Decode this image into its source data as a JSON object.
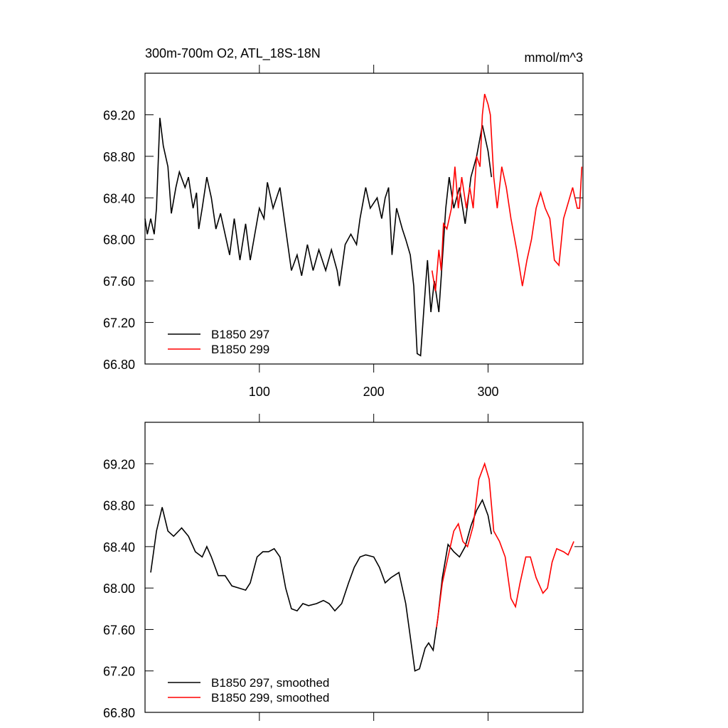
{
  "chart_data": [
    {
      "type": "line",
      "title": "300m-700m O2, ATL_18S-18N",
      "subtitle": "mmol/m^3",
      "xlim": [
        0,
        383
      ],
      "xticks": [
        100,
        200,
        300
      ],
      "show_xtick_labels": true,
      "ylim": [
        66.8,
        69.6
      ],
      "yticks": [
        {
          "value": 66.8,
          "label": "66.80"
        },
        {
          "value": 67.2,
          "label": "67.20"
        },
        {
          "value": 67.6,
          "label": "67.60"
        },
        {
          "value": 68.0,
          "label": "68.00"
        },
        {
          "value": 68.4,
          "label": "68.40"
        },
        {
          "value": 68.8,
          "label": "68.80"
        },
        {
          "value": 69.2,
          "label": "69.20"
        }
      ],
      "series": [
        {
          "name": "B1850 297",
          "color": "#000000",
          "x": [
            0,
            2,
            5,
            8,
            10,
            13,
            16,
            20,
            23,
            27,
            30,
            35,
            38,
            42,
            45,
            47,
            50,
            54,
            58,
            62,
            66,
            70,
            74,
            78,
            83,
            88,
            92,
            96,
            100,
            104,
            107,
            112,
            118,
            123,
            128,
            133,
            137,
            142,
            147,
            152,
            158,
            163,
            168,
            170,
            175,
            180,
            185,
            188,
            193,
            197,
            203,
            207,
            210,
            213,
            216,
            220,
            225,
            228,
            232,
            235,
            238,
            241,
            245,
            247,
            250,
            253,
            257,
            260,
            263,
            266,
            270,
            275,
            280,
            285,
            290,
            295,
            300,
            303
          ],
          "values": [
            68.2,
            68.05,
            68.2,
            68.05,
            68.3,
            69.17,
            68.9,
            68.7,
            68.25,
            68.5,
            68.65,
            68.5,
            68.6,
            68.3,
            68.45,
            68.1,
            68.3,
            68.6,
            68.4,
            68.1,
            68.25,
            68.05,
            67.85,
            68.2,
            67.8,
            68.15,
            67.8,
            68.05,
            68.3,
            68.2,
            68.55,
            68.3,
            68.5,
            68.1,
            67.7,
            67.85,
            67.65,
            67.95,
            67.7,
            67.9,
            67.7,
            67.9,
            67.7,
            67.55,
            67.95,
            68.05,
            67.95,
            68.2,
            68.5,
            68.3,
            68.4,
            68.2,
            68.4,
            68.5,
            67.85,
            68.3,
            68.1,
            68.0,
            67.85,
            67.55,
            66.9,
            66.88,
            67.5,
            67.8,
            67.3,
            67.6,
            67.3,
            67.8,
            68.3,
            68.6,
            68.3,
            68.5,
            68.15,
            68.6,
            68.8,
            69.1,
            68.85,
            68.6
          ]
        },
        {
          "name": "B1850 299",
          "color": "#ff0000",
          "x": [
            251,
            254,
            257,
            259,
            261,
            264,
            268,
            271,
            274,
            277,
            281,
            284,
            287,
            290,
            293,
            295,
            297,
            300,
            302,
            305,
            308,
            312,
            316,
            320,
            325,
            330,
            334,
            338,
            342,
            346,
            350,
            354,
            358,
            362,
            366,
            370,
            374,
            378,
            380,
            382
          ],
          "values": [
            67.7,
            67.5,
            67.9,
            67.7,
            68.15,
            68.1,
            68.3,
            68.7,
            68.3,
            68.6,
            68.3,
            68.5,
            68.3,
            68.8,
            68.7,
            69.2,
            69.4,
            69.3,
            69.2,
            68.6,
            68.3,
            68.7,
            68.5,
            68.2,
            67.9,
            67.55,
            67.8,
            68.0,
            68.3,
            68.45,
            68.3,
            68.2,
            67.8,
            67.75,
            68.2,
            68.35,
            68.5,
            68.3,
            68.3,
            68.7
          ]
        }
      ]
    },
    {
      "type": "line",
      "xlim": [
        0,
        383
      ],
      "xticks": [
        100,
        200,
        300
      ],
      "show_xtick_labels": false,
      "ylim": [
        66.8,
        69.6
      ],
      "yticks": [
        {
          "value": 66.8,
          "label": "66.80"
        },
        {
          "value": 67.2,
          "label": "67.20"
        },
        {
          "value": 67.6,
          "label": "67.60"
        },
        {
          "value": 68.0,
          "label": "68.00"
        },
        {
          "value": 68.4,
          "label": "68.40"
        },
        {
          "value": 68.8,
          "label": "68.80"
        },
        {
          "value": 69.2,
          "label": "69.20"
        }
      ],
      "series": [
        {
          "name": "B1850 297, smoothed",
          "color": "#000000",
          "x": [
            5,
            10,
            15,
            20,
            25,
            32,
            38,
            44,
            50,
            54,
            58,
            64,
            70,
            76,
            82,
            88,
            92,
            98,
            103,
            108,
            113,
            118,
            123,
            128,
            133,
            138,
            143,
            150,
            156,
            161,
            166,
            172,
            178,
            183,
            188,
            193,
            200,
            205,
            210,
            215,
            222,
            228,
            233,
            236,
            240,
            245,
            248,
            252,
            256,
            260,
            265,
            270,
            275,
            280,
            285,
            290,
            295,
            300,
            303
          ],
          "values": [
            68.15,
            68.55,
            68.78,
            68.55,
            68.5,
            68.58,
            68.5,
            68.35,
            68.3,
            68.4,
            68.3,
            68.12,
            68.12,
            68.02,
            68.0,
            67.98,
            68.05,
            68.3,
            68.35,
            68.35,
            68.38,
            68.3,
            68.0,
            67.8,
            67.78,
            67.85,
            67.83,
            67.85,
            67.88,
            67.85,
            67.78,
            67.85,
            68.05,
            68.2,
            68.3,
            68.32,
            68.3,
            68.2,
            68.05,
            68.1,
            68.15,
            67.85,
            67.45,
            67.2,
            67.22,
            67.42,
            67.47,
            67.4,
            67.7,
            68.1,
            68.42,
            68.35,
            68.3,
            68.4,
            68.6,
            68.75,
            68.85,
            68.7,
            68.52
          ]
        },
        {
          "name": "B1850 299, smoothed",
          "color": "#ff0000",
          "x": [
            255,
            260,
            265,
            270,
            274,
            278,
            282,
            287,
            292,
            297,
            301,
            305,
            310,
            315,
            320,
            324,
            328,
            333,
            337,
            342,
            348,
            352,
            356,
            360,
            366,
            370,
            375
          ],
          "values": [
            67.62,
            68.05,
            68.3,
            68.55,
            68.62,
            68.45,
            68.4,
            68.6,
            69.05,
            69.2,
            69.05,
            68.55,
            68.45,
            68.3,
            67.9,
            67.82,
            68.05,
            68.3,
            68.3,
            68.1,
            67.95,
            68.0,
            68.25,
            68.38,
            68.35,
            68.32,
            68.45
          ]
        }
      ]
    }
  ]
}
